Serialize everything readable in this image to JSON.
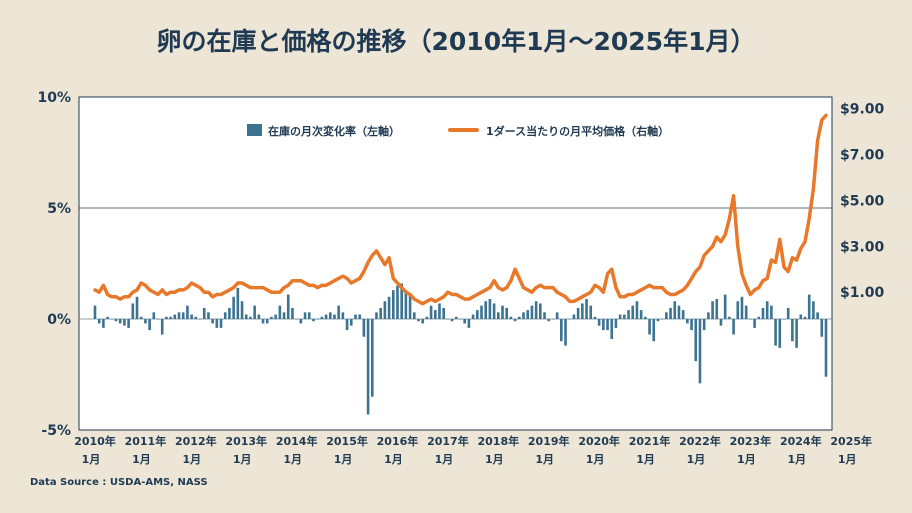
{
  "title": "卵の在庫と価格の推移（2010年1月〜2025年1月）",
  "source": "Data Source : USDA-AMS, NASS",
  "colors": {
    "bars": "#3b7390",
    "line": "#e8782a",
    "axis": "#1f3a52",
    "plot_bg": "#ffffff",
    "page_bg": "#ede6d6"
  },
  "chart_data": {
    "type": "bar+line",
    "legend_position": "top-center",
    "grid": "horizontal line at 5%",
    "left_axis": {
      "ylim": [
        -5,
        10
      ],
      "ticks": [
        "-5%",
        "0%",
        "5%",
        "10%"
      ],
      "tick_values": [
        -5,
        0,
        5,
        10
      ]
    },
    "right_axis": {
      "ylim": [
        -5,
        9.5
      ],
      "ticks": [
        "$1.00",
        "$3.00",
        "$5.00",
        "$7.00",
        "$9.00"
      ],
      "tick_values": [
        1,
        3,
        5,
        7,
        9
      ]
    },
    "x_ticks": [
      {
        "year": "2010年",
        "month": "1月",
        "t": 0
      },
      {
        "year": "2011年",
        "month": "1月",
        "t": 12
      },
      {
        "year": "2012年",
        "month": "1月",
        "t": 24
      },
      {
        "year": "2013年",
        "month": "1月",
        "t": 36
      },
      {
        "year": "2014年",
        "month": "1月",
        "t": 48
      },
      {
        "year": "2015年",
        "month": "1月",
        "t": 60
      },
      {
        "year": "2016年",
        "month": "1月",
        "t": 72
      },
      {
        "year": "2017年",
        "month": "1月",
        "t": 84
      },
      {
        "year": "2018年",
        "month": "1月",
        "t": 96
      },
      {
        "year": "2019年",
        "month": "1月",
        "t": 108
      },
      {
        "year": "2020年",
        "month": "1月",
        "t": 120
      },
      {
        "year": "2021年",
        "month": "1月",
        "t": 132
      },
      {
        "year": "2022年",
        "month": "1月",
        "t": 144
      },
      {
        "year": "2023年",
        "month": "1月",
        "t": 156
      },
      {
        "year": "2024年",
        "month": "1月",
        "t": 168
      },
      {
        "year": "2025年",
        "month": "1月",
        "t": 180
      }
    ],
    "series": [
      {
        "name": "在庫の月次変化率（左軸）",
        "type": "bar",
        "axis": "left",
        "values": [
          0.6,
          -0.2,
          -0.4,
          0.1,
          0.0,
          -0.1,
          -0.2,
          -0.3,
          -0.4,
          0.7,
          1.0,
          0.1,
          -0.2,
          -0.5,
          0.3,
          0.0,
          -0.7,
          0.1,
          0.1,
          0.2,
          0.3,
          0.3,
          0.6,
          0.2,
          0.1,
          0.0,
          0.5,
          0.3,
          -0.2,
          -0.4,
          -0.4,
          0.3,
          0.5,
          1.0,
          1.4,
          0.8,
          0.2,
          0.1,
          0.6,
          0.2,
          -0.2,
          -0.2,
          0.1,
          0.2,
          0.6,
          0.3,
          1.1,
          0.5,
          0.0,
          -0.2,
          0.3,
          0.3,
          -0.1,
          0.0,
          0.1,
          0.2,
          0.3,
          0.2,
          0.6,
          0.3,
          -0.5,
          -0.3,
          0.2,
          0.2,
          -0.8,
          -4.3,
          -3.5,
          0.3,
          0.5,
          0.8,
          1.0,
          1.3,
          1.5,
          1.6,
          1.3,
          1.1,
          0.3,
          -0.1,
          -0.2,
          0.1,
          0.6,
          0.4,
          0.7,
          0.5,
          0.0,
          -0.1,
          0.1,
          0.0,
          -0.2,
          -0.4,
          0.2,
          0.4,
          0.6,
          0.8,
          0.9,
          0.7,
          0.3,
          0.6,
          0.5,
          0.1,
          -0.1,
          0.1,
          0.3,
          0.4,
          0.6,
          0.8,
          0.7,
          0.3,
          -0.1,
          0.0,
          0.3,
          -1.0,
          -1.2,
          0.0,
          0.2,
          0.5,
          0.7,
          0.9,
          0.6,
          0.1,
          -0.3,
          -0.5,
          -0.5,
          -0.9,
          -0.4,
          0.2,
          0.2,
          0.4,
          0.6,
          0.8,
          0.4,
          0.1,
          -0.7,
          -1.0,
          -0.1,
          0.0,
          0.3,
          0.5,
          0.8,
          0.6,
          0.4,
          -0.2,
          -0.5,
          -1.9,
          -2.9,
          -0.5,
          0.3,
          0.8,
          0.9,
          -0.3,
          1.1,
          0.1,
          -0.7,
          0.8,
          1.0,
          0.6,
          0.0,
          -0.4,
          0.1,
          0.5,
          0.8,
          0.6,
          -1.2,
          -1.3,
          0.0,
          0.5,
          -1.0,
          -1.3,
          0.2,
          0.1,
          1.1,
          0.8,
          0.3,
          -0.8,
          -2.6
        ]
      },
      {
        "name": "1ダース当たりの月平均価格（右軸）",
        "type": "line",
        "axis": "right",
        "values": [
          1.1,
          1.0,
          1.3,
          0.9,
          0.8,
          0.8,
          0.7,
          0.8,
          0.8,
          1.0,
          1.1,
          1.4,
          1.3,
          1.1,
          1.0,
          0.9,
          1.1,
          0.9,
          1.0,
          1.0,
          1.1,
          1.1,
          1.2,
          1.4,
          1.3,
          1.2,
          1.0,
          1.0,
          0.8,
          0.9,
          0.9,
          1.0,
          1.1,
          1.2,
          1.4,
          1.4,
          1.3,
          1.2,
          1.2,
          1.2,
          1.2,
          1.1,
          1.0,
          1.0,
          1.0,
          1.2,
          1.3,
          1.5,
          1.5,
          1.5,
          1.4,
          1.3,
          1.3,
          1.2,
          1.3,
          1.3,
          1.4,
          1.5,
          1.6,
          1.7,
          1.6,
          1.4,
          1.5,
          1.6,
          1.9,
          2.3,
          2.6,
          2.8,
          2.5,
          2.2,
          2.5,
          1.6,
          1.4,
          1.2,
          1.0,
          0.9,
          0.7,
          0.6,
          0.5,
          0.6,
          0.7,
          0.6,
          0.7,
          0.8,
          1.0,
          0.9,
          0.9,
          0.8,
          0.7,
          0.7,
          0.8,
          0.9,
          1.0,
          1.1,
          1.2,
          1.5,
          1.2,
          1.1,
          1.2,
          1.5,
          2.0,
          1.6,
          1.2,
          1.1,
          1.0,
          1.2,
          1.3,
          1.2,
          1.2,
          1.2,
          1.0,
          0.9,
          0.8,
          0.6,
          0.6,
          0.7,
          0.8,
          0.9,
          1.0,
          1.3,
          1.2,
          1.0,
          1.8,
          2.0,
          1.2,
          0.8,
          0.8,
          0.9,
          0.9,
          1.0,
          1.1,
          1.2,
          1.3,
          1.2,
          1.2,
          1.2,
          1.0,
          0.9,
          0.9,
          1.0,
          1.1,
          1.3,
          1.6,
          1.9,
          2.1,
          2.6,
          2.8,
          3.0,
          3.4,
          3.2,
          3.5,
          4.2,
          5.2,
          3.0,
          1.8,
          1.3,
          0.9,
          1.1,
          1.2,
          1.5,
          1.6,
          2.4,
          2.3,
          3.3,
          2.1,
          1.9,
          2.5,
          2.4,
          2.9,
          3.2,
          4.2,
          5.5,
          7.6,
          8.5,
          8.7
        ]
      }
    ]
  }
}
